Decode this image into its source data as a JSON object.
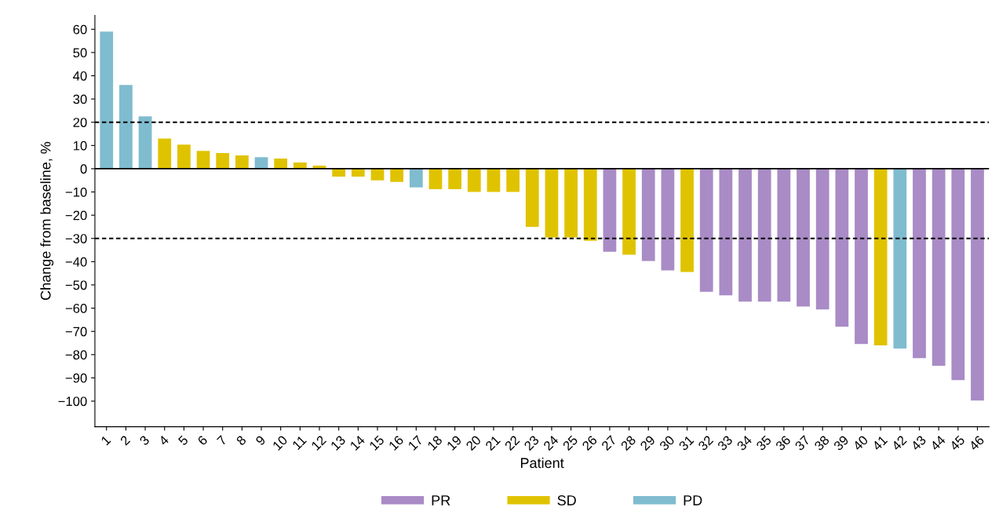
{
  "chart_data": {
    "type": "bar",
    "xlabel": "Patient",
    "ylabel": "Change from baseline, %",
    "categories": [
      "1",
      "2",
      "3",
      "4",
      "5",
      "6",
      "7",
      "8",
      "9",
      "10",
      "11",
      "12",
      "13",
      "14",
      "15",
      "16",
      "17",
      "18",
      "19",
      "20",
      "21",
      "22",
      "23",
      "24",
      "25",
      "26",
      "27",
      "28",
      "29",
      "30",
      "31",
      "32",
      "33",
      "34",
      "35",
      "36",
      "37",
      "38",
      "39",
      "40",
      "41",
      "42",
      "43",
      "44",
      "45",
      "46"
    ],
    "series": [
      {
        "name": "PR",
        "color": "#a98bc6",
        "values": [
          null,
          null,
          null,
          null,
          null,
          null,
          null,
          null,
          null,
          null,
          null,
          null,
          null,
          null,
          null,
          null,
          null,
          null,
          null,
          null,
          null,
          null,
          null,
          null,
          null,
          null,
          -35.7,
          null,
          -39.7,
          -43.8,
          null,
          -53,
          -54.5,
          -57.2,
          -57.2,
          -57.2,
          -59.3,
          -60.6,
          -68,
          -75.4,
          null,
          null,
          -81.5,
          -84.8,
          -91,
          -99.7
        ]
      },
      {
        "name": "SD",
        "color": "#e0c300",
        "values": [
          null,
          null,
          null,
          13,
          10.4,
          7.7,
          6.7,
          5.7,
          null,
          4.4,
          2.7,
          1.3,
          -3.4,
          -3.4,
          -5,
          -5.7,
          null,
          -8.8,
          -8.8,
          -10,
          -10,
          -10,
          -25,
          -29.6,
          -29.6,
          -31,
          null,
          -37,
          null,
          null,
          -44.4,
          null,
          null,
          null,
          null,
          null,
          null,
          null,
          null,
          null,
          -76,
          null,
          null,
          null,
          null,
          null
        ]
      },
      {
        "name": "PD",
        "color": "#7fbccf",
        "values": [
          59,
          36,
          22.5,
          null,
          null,
          null,
          null,
          null,
          5,
          null,
          null,
          null,
          null,
          null,
          null,
          null,
          -8,
          null,
          null,
          null,
          null,
          null,
          null,
          null,
          null,
          null,
          null,
          null,
          null,
          null,
          null,
          null,
          null,
          null,
          null,
          null,
          null,
          null,
          null,
          null,
          null,
          -77.4,
          null,
          null,
          null,
          null
        ]
      }
    ],
    "ylim": [
      -111,
      66
    ],
    "yticks": [
      60,
      50,
      40,
      30,
      20,
      10,
      0,
      {
        "value": -10,
        "label": "−10"
      },
      {
        "value": -20,
        "label": "−20"
      },
      {
        "value": -30,
        "label": "−30"
      },
      {
        "value": -40,
        "label": "−40"
      },
      {
        "value": -50,
        "label": "−50"
      },
      {
        "value": -60,
        "label": "−60"
      },
      {
        "value": -70,
        "label": "−70"
      },
      {
        "value": -80,
        "label": "−80"
      },
      {
        "value": -90,
        "label": "−90"
      },
      {
        "value": -100,
        "label": "−100"
      }
    ],
    "ref_lines": [
      {
        "axis": "y",
        "value": 20,
        "color": "#000000",
        "line_style": "dashed"
      },
      {
        "axis": "y",
        "value": -30,
        "color": "#000000",
        "line_style": "dashed"
      },
      {
        "axis": "y",
        "value": 0,
        "color": "#000000",
        "line_style": "solid"
      }
    ],
    "grid": false,
    "legend": "bottom"
  }
}
